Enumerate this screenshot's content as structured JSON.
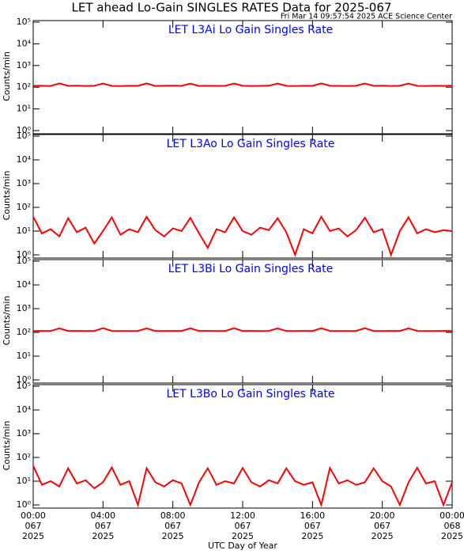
{
  "title": "LET ahead Lo-Gain SINGLES RATES Data for 2025-067",
  "subtitle": "Fri Mar 14 09:57:54 2025 ACE Science Center",
  "x_label": "UTC Day of Year",
  "chart_data": [
    {
      "type": "line",
      "title": "LET L3Ai Lo Gain Singles Rate",
      "y_label": "Counts/min",
      "log_y": true,
      "xlim": [
        0,
        24
      ],
      "xticks": [
        0,
        4,
        8,
        12,
        16,
        20,
        24
      ],
      "ylim": [
        1,
        100000
      ],
      "yticks": [
        {
          "value": 1,
          "label": "10⁰"
        },
        {
          "value": 10,
          "label": "10¹"
        },
        {
          "value": 100,
          "label": "10²"
        },
        {
          "value": 1000,
          "label": "10³"
        },
        {
          "value": 10000,
          "label": "10⁴"
        },
        {
          "value": 100000,
          "label": "10⁵"
        }
      ],
      "x": [
        0,
        0.5,
        1,
        1.5,
        2,
        2.5,
        3,
        3.5,
        4,
        4.5,
        5,
        5.5,
        6,
        6.5,
        7,
        7.5,
        8,
        8.5,
        9,
        9.5,
        10,
        10.5,
        11,
        11.5,
        12,
        12.5,
        13,
        13.5,
        14,
        14.5,
        15,
        15.5,
        16,
        16.5,
        17,
        17.5,
        18,
        18.5,
        19,
        19.5,
        20,
        20.5,
        21,
        21.5,
        22,
        22.5,
        23,
        23.5,
        24
      ],
      "series": [
        {
          "name": "L3Ai",
          "color": "#ff0000",
          "values": [
            115,
            116,
            114,
            150,
            115,
            117,
            114,
            116,
            148,
            115,
            113,
            116,
            115,
            150,
            114,
            116,
            117,
            115,
            147,
            114,
            116,
            115,
            115,
            149,
            116,
            114,
            115,
            117,
            148,
            115,
            114,
            116,
            115,
            150,
            116,
            115,
            114,
            116,
            148,
            115,
            117,
            114,
            116,
            149,
            115,
            114,
            116,
            115,
            117
          ]
        }
      ]
    },
    {
      "type": "line",
      "title": "LET L3Ao Lo Gain Singles Rate",
      "y_label": "Counts/min",
      "log_y": true,
      "xlim": [
        0,
        24
      ],
      "xticks": [
        0,
        4,
        8,
        12,
        16,
        20,
        24
      ],
      "ylim": [
        1,
        100000
      ],
      "yticks": [
        {
          "value": 1,
          "label": "10⁰"
        },
        {
          "value": 10,
          "label": "10¹"
        },
        {
          "value": 100,
          "label": "10²"
        },
        {
          "value": 1000,
          "label": "10³"
        },
        {
          "value": 10000,
          "label": "10⁴"
        },
        {
          "value": 100000,
          "label": "10⁵"
        }
      ],
      "x": [
        0,
        0.5,
        1,
        1.5,
        2,
        2.5,
        3,
        3.5,
        4,
        4.5,
        5,
        5.5,
        6,
        6.5,
        7,
        7.5,
        8,
        8.5,
        9,
        9.5,
        10,
        10.5,
        11,
        11.5,
        12,
        12.5,
        13,
        13.5,
        14,
        14.5,
        15,
        15.5,
        16,
        16.5,
        17,
        17.5,
        18,
        18.5,
        19,
        19.5,
        20,
        20.5,
        21,
        21.5,
        22,
        22.5,
        23,
        23.5,
        24
      ],
      "series": [
        {
          "name": "L3Ao",
          "color": "#ff0000",
          "values": [
            40,
            8,
            12,
            6,
            35,
            9,
            14,
            3,
            10,
            38,
            7,
            12,
            9,
            40,
            11,
            6,
            13,
            10,
            36,
            8,
            2,
            12,
            9,
            38,
            10,
            7,
            14,
            11,
            35,
            9,
            1,
            12,
            8,
            40,
            10,
            13,
            6,
            11,
            37,
            9,
            12,
            1,
            10,
            38,
            8,
            12,
            9,
            11,
            10
          ]
        }
      ]
    },
    {
      "type": "line",
      "title": "LET L3Bi Lo Gain Singles Rate",
      "y_label": "Counts/min",
      "log_y": true,
      "xlim": [
        0,
        24
      ],
      "xticks": [
        0,
        4,
        8,
        12,
        16,
        20,
        24
      ],
      "ylim": [
        1,
        100000
      ],
      "yticks": [
        {
          "value": 1,
          "label": "10⁰"
        },
        {
          "value": 10,
          "label": "10¹"
        },
        {
          "value": 100,
          "label": "10²"
        },
        {
          "value": 1000,
          "label": "10³"
        },
        {
          "value": 10000,
          "label": "10⁴"
        },
        {
          "value": 100000,
          "label": "10⁵"
        }
      ],
      "x": [
        0,
        0.5,
        1,
        1.5,
        2,
        2.5,
        3,
        3.5,
        4,
        4.5,
        5,
        5.5,
        6,
        6.5,
        7,
        7.5,
        8,
        8.5,
        9,
        9.5,
        10,
        10.5,
        11,
        11.5,
        12,
        12.5,
        13,
        13.5,
        14,
        14.5,
        15,
        15.5,
        16,
        16.5,
        17,
        17.5,
        18,
        18.5,
        19,
        19.5,
        20,
        20.5,
        21,
        21.5,
        22,
        22.5,
        23,
        23.5,
        24
      ],
      "series": [
        {
          "name": "L3Bi",
          "color": "#ff0000",
          "values": [
            114,
            116,
            115,
            148,
            115,
            116,
            114,
            115,
            150,
            116,
            114,
            115,
            116,
            148,
            115,
            114,
            116,
            115,
            149,
            115,
            116,
            114,
            115,
            150,
            115,
            116,
            114,
            116,
            148,
            114,
            115,
            116,
            115,
            149,
            116,
            114,
            115,
            116,
            150,
            115,
            114,
            116,
            115,
            148,
            116,
            115,
            114,
            116,
            115
          ]
        }
      ]
    },
    {
      "type": "line",
      "title": "LET L3Bo Lo Gain Singles Rate",
      "y_label": "Counts/min",
      "log_y": true,
      "xlim": [
        0,
        24
      ],
      "xticks": [
        {
          "value": 0,
          "label": [
            "00:00",
            "067",
            "2025"
          ]
        },
        {
          "value": 4,
          "label": [
            "04:00",
            "067",
            "2025"
          ]
        },
        {
          "value": 8,
          "label": [
            "08:00",
            "067",
            "2025"
          ]
        },
        {
          "value": 12,
          "label": [
            "12:00",
            "067",
            "2025"
          ]
        },
        {
          "value": 16,
          "label": [
            "16:00",
            "067",
            "2025"
          ]
        },
        {
          "value": 20,
          "label": [
            "20:00",
            "067",
            "2025"
          ]
        },
        {
          "value": 24,
          "label": [
            "00:00",
            "068",
            "2025"
          ]
        }
      ],
      "ylim": [
        1,
        100000
      ],
      "yticks": [
        {
          "value": 1,
          "label": "10⁰"
        },
        {
          "value": 10,
          "label": "10¹"
        },
        {
          "value": 100,
          "label": "10²"
        },
        {
          "value": 1000,
          "label": "10³"
        },
        {
          "value": 10000,
          "label": "10⁴"
        },
        {
          "value": 100000,
          "label": "10⁵"
        }
      ],
      "x": [
        0,
        0.5,
        1,
        1.5,
        2,
        2.5,
        3,
        3.5,
        4,
        4.5,
        5,
        5.5,
        6,
        6.5,
        7,
        7.5,
        8,
        8.5,
        9,
        9.5,
        10,
        10.5,
        11,
        11.5,
        12,
        12.5,
        13,
        13.5,
        14,
        14.5,
        15,
        15.5,
        16,
        16.5,
        17,
        17.5,
        18,
        18.5,
        19,
        19.5,
        20,
        20.5,
        21,
        21.5,
        22,
        22.5,
        23,
        23.5,
        24
      ],
      "series": [
        {
          "name": "L3Bo",
          "color": "#ff0000",
          "values": [
            45,
            7,
            10,
            6,
            35,
            8,
            11,
            5,
            9,
            38,
            7,
            10,
            1,
            35,
            9,
            6,
            11,
            8,
            1,
            9,
            35,
            7,
            10,
            8,
            36,
            9,
            6,
            11,
            8,
            35,
            10,
            7,
            9,
            1,
            36,
            8,
            11,
            7,
            9,
            35,
            10,
            6,
            1,
            9,
            37,
            8,
            10,
            1,
            9
          ]
        }
      ]
    }
  ]
}
